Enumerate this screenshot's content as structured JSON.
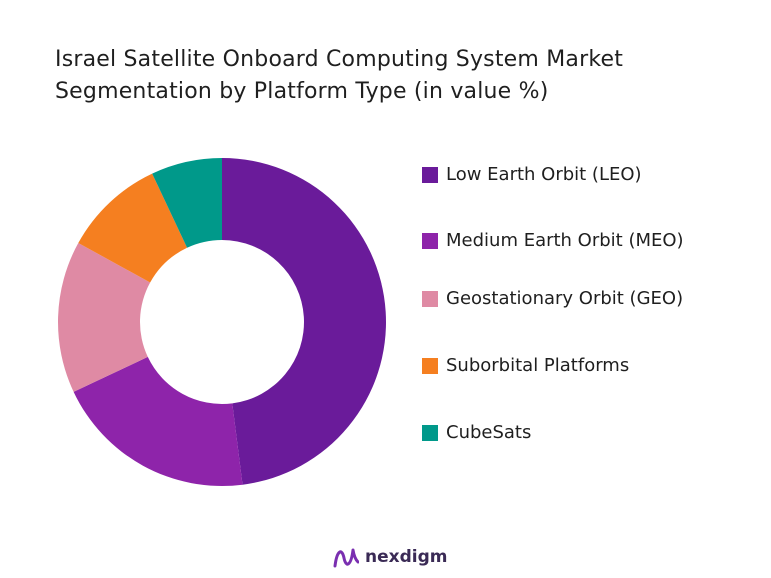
{
  "chart_data": {
    "type": "pie",
    "variant": "donut",
    "title_lines": [
      "Israel Satellite Onboard Computing System Market",
      "Segmentation by Platform Type (in value %)"
    ],
    "categories": [
      "Low Earth Orbit (LEO)",
      "Medium Earth Orbit (MEO)",
      "Geostationary Orbit (GEO)",
      "Suborbital Platforms",
      "CubeSats"
    ],
    "values": [
      48,
      20,
      15,
      10,
      7
    ],
    "colors": [
      "#6a1b9a",
      "#8e24aa",
      "#df8aa4",
      "#f57f20",
      "#00998a"
    ],
    "legend_position": "right"
  },
  "brand": {
    "name": "nexdigm",
    "logo_icon": "nexdigm-logo-icon",
    "logo_color": "#7a2fb0"
  }
}
